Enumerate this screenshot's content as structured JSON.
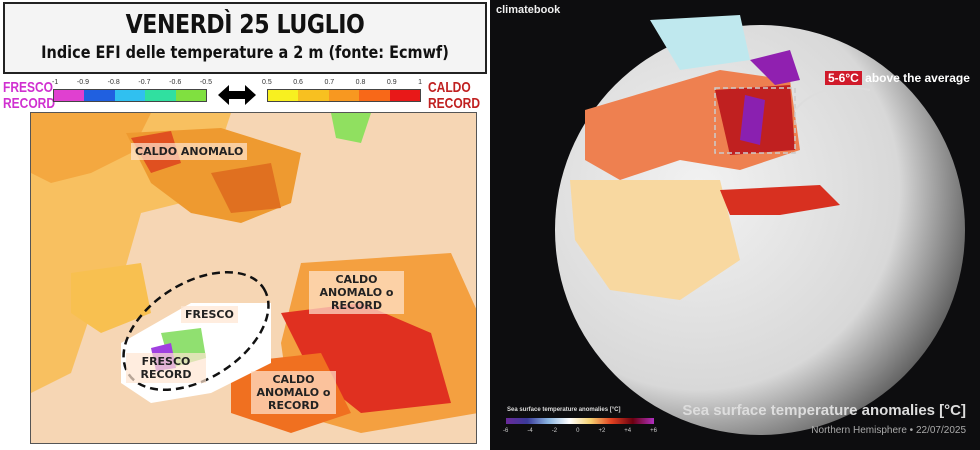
{
  "left_panel": {
    "title": "VENERDÌ 25 LUGLIO",
    "subtitle": "Indice EFI delle temperature a 2 m (fonte: Ecmwf)",
    "legend": {
      "cold_label": [
        "FRESCO",
        "RECORD"
      ],
      "hot_label": [
        "CALDO",
        "RECORD"
      ],
      "cold_ticks": [
        "-1",
        "-0.9",
        "-0.8",
        "-0.7",
        "-0.6",
        "-0.5"
      ],
      "hot_ticks": [
        "0.5",
        "0.6",
        "0.7",
        "0.8",
        "0.9",
        "1"
      ],
      "cold_colors": [
        "#e040d0",
        "#2060e0",
        "#30c0f0",
        "#30e0a0",
        "#80e040"
      ],
      "hot_colors": [
        "#f8f020",
        "#f8c020",
        "#f89820",
        "#f86818",
        "#e81818"
      ],
      "arrow_icon": "double-arrow-icon"
    },
    "map_labels": {
      "caldo_anomalo": "CALDO ANOMALO",
      "fresco": "FRESCO",
      "fresco_record": "FRESCO RECORD",
      "caldo_east": "CALDO ANOMALO o RECORD",
      "caldo_south": "CALDO ANOMALO o RECORD"
    }
  },
  "right_panel": {
    "brand": "climatebook",
    "callout_highlight": "5-6°C",
    "callout_text": "above the average",
    "title": "Sea surface temperature anomalies [°C]",
    "subtitle": "Northern Hemisphere • 22/07/2025",
    "colorbar_label": "Sea surface temperature anomalies [°C]",
    "colorbar_ticks": [
      "-6",
      "-4",
      "-2",
      "0",
      "+2",
      "+4",
      "+6"
    ]
  }
}
